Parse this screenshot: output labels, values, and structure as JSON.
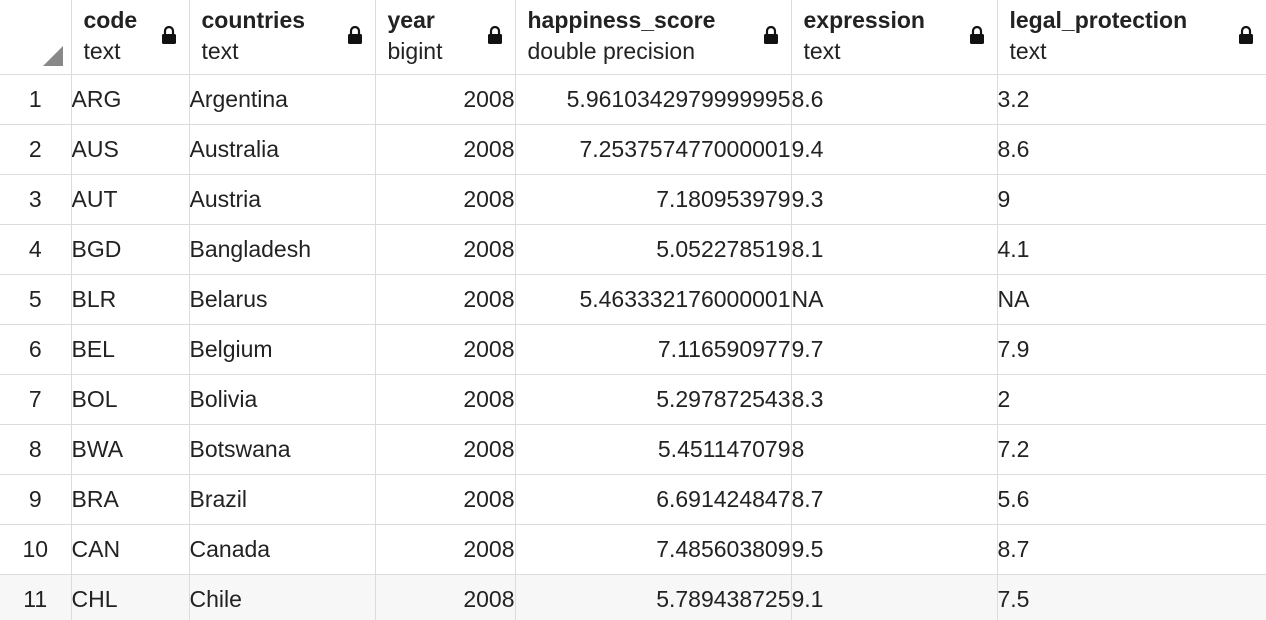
{
  "columns": [
    {
      "name": "code",
      "type": "text"
    },
    {
      "name": "countries",
      "type": "text"
    },
    {
      "name": "year",
      "type": "bigint"
    },
    {
      "name": "happiness_score",
      "type": "double precision"
    },
    {
      "name": "expression",
      "type": "text"
    },
    {
      "name": "legal_protection",
      "type": "text"
    }
  ],
  "rows": [
    {
      "num": "1",
      "code": "ARG",
      "countries": "Argentina",
      "year": "2008",
      "happiness_score": "5.9610342979999995",
      "expression": "8.6",
      "legal_protection": "3.2"
    },
    {
      "num": "2",
      "code": "AUS",
      "countries": "Australia",
      "year": "2008",
      "happiness_score": "7.253757477000001",
      "expression": "9.4",
      "legal_protection": "8.6"
    },
    {
      "num": "3",
      "code": "AUT",
      "countries": "Austria",
      "year": "2008",
      "happiness_score": "7.180953979",
      "expression": "9.3",
      "legal_protection": "9"
    },
    {
      "num": "4",
      "code": "BGD",
      "countries": "Bangladesh",
      "year": "2008",
      "happiness_score": "5.052278519",
      "expression": "8.1",
      "legal_protection": "4.1"
    },
    {
      "num": "5",
      "code": "BLR",
      "countries": "Belarus",
      "year": "2008",
      "happiness_score": "5.463332176000001",
      "expression": "NA",
      "legal_protection": "NA"
    },
    {
      "num": "6",
      "code": "BEL",
      "countries": "Belgium",
      "year": "2008",
      "happiness_score": "7.116590977",
      "expression": "9.7",
      "legal_protection": "7.9"
    },
    {
      "num": "7",
      "code": "BOL",
      "countries": "Bolivia",
      "year": "2008",
      "happiness_score": "5.297872543",
      "expression": "8.3",
      "legal_protection": "2"
    },
    {
      "num": "8",
      "code": "BWA",
      "countries": "Botswana",
      "year": "2008",
      "happiness_score": "5.451147079",
      "expression": "8",
      "legal_protection": "7.2"
    },
    {
      "num": "9",
      "code": "BRA",
      "countries": "Brazil",
      "year": "2008",
      "happiness_score": "6.691424847",
      "expression": "8.7",
      "legal_protection": "5.6"
    },
    {
      "num": "10",
      "code": "CAN",
      "countries": "Canada",
      "year": "2008",
      "happiness_score": "7.485603809",
      "expression": "9.5",
      "legal_protection": "8.7"
    },
    {
      "num": "11",
      "code": "CHL",
      "countries": "Chile",
      "year": "2008",
      "happiness_score": "5.789438725",
      "expression": "9.1",
      "legal_protection": "7.5"
    }
  ],
  "icons": {
    "lock": "lock-icon",
    "corner": "select-all-corner-icon"
  }
}
